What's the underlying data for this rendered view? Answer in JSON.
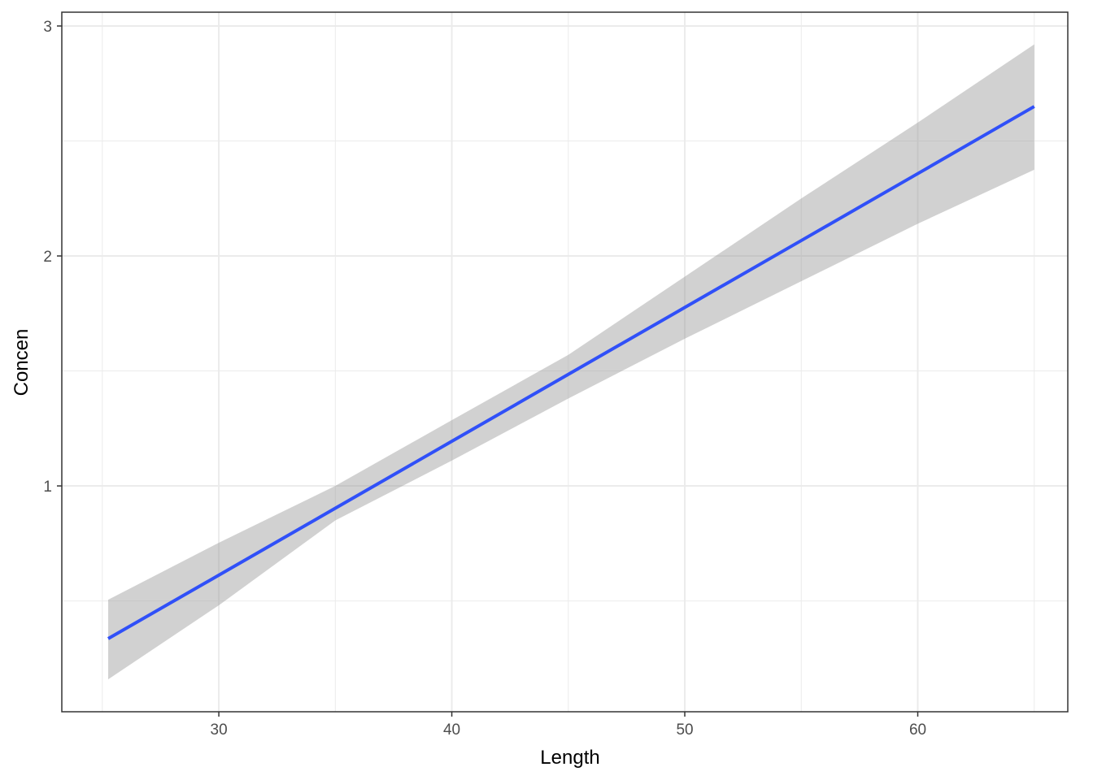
{
  "chart_data": {
    "type": "line",
    "x_label": "Length",
    "y_label": "Concen",
    "x": [
      25.25,
      30,
      35,
      40,
      45,
      50,
      55,
      60,
      65
    ],
    "series": [
      {
        "color": "#3050f8",
        "values": [
          0.336,
          0.612,
          0.903,
          1.194,
          1.485,
          1.776,
          2.067,
          2.358,
          2.65
        ]
      }
    ],
    "band": {
      "color": "#999999",
      "lower": [
        0.159,
        0.481,
        0.85,
        1.11,
        1.38,
        1.64,
        1.89,
        2.14,
        2.375
      ],
      "upper": [
        0.505,
        0.753,
        1.0,
        1.286,
        1.57,
        1.91,
        2.25,
        2.58,
        2.92
      ]
    },
    "xlim": [
      23.26,
      66.44
    ],
    "ylim": [
      0.018,
      3.06
    ],
    "xticks": [
      30,
      40,
      50,
      60
    ],
    "yticks": [
      1,
      2,
      3
    ],
    "x_minor_ticks": [
      25,
      35,
      45,
      55,
      65
    ],
    "y_minor_ticks": [
      0.5,
      1.5,
      2.5
    ],
    "grid": true
  }
}
